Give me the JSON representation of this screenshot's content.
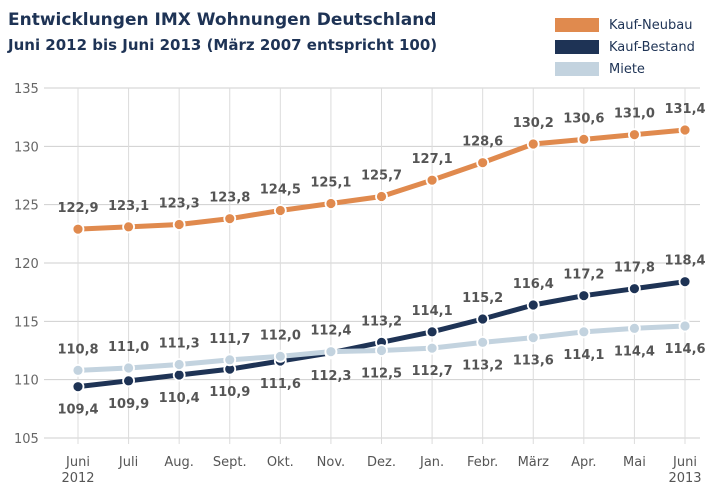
{
  "chart_data": {
    "type": "line",
    "title": "Entwicklungen IMX Wohnungen Deutschland",
    "subtitle": "Juni 2012 bis Juni 2013 (März 2007 entspricht 100)",
    "categories": [
      "Juni 2012",
      "Juli",
      "Aug.",
      "Sept.",
      "Okt.",
      "Nov.",
      "Dez.",
      "Jan.",
      "Febr.",
      "März",
      "Apr.",
      "Mai",
      "Juni 2013"
    ],
    "ylim": [
      105,
      135
    ],
    "yticks": [
      105,
      110,
      115,
      120,
      125,
      130,
      135
    ],
    "grid": true,
    "legend_position": "top-right",
    "series": [
      {
        "name": "Kauf-Neubau",
        "color": "#e08a4e",
        "values": [
          122.9,
          123.1,
          123.3,
          123.8,
          124.5,
          125.1,
          125.7,
          127.1,
          128.6,
          130.2,
          130.6,
          131.0,
          131.4
        ],
        "labels": [
          "122,9",
          "123,1",
          "123,3",
          "123,8",
          "124,5",
          "125,1",
          "125,7",
          "127,1",
          "128,6",
          "130,2",
          "130,6",
          "131,0",
          "131,4"
        ]
      },
      {
        "name": "Kauf-Bestand",
        "color": "#1e3355",
        "values": [
          109.4,
          109.9,
          110.4,
          110.9,
          111.6,
          112.3,
          113.2,
          114.1,
          115.2,
          116.4,
          117.2,
          117.8,
          118.4
        ],
        "labels": [
          "109,4",
          "109,9",
          "110,4",
          "110,9",
          "111,6",
          "112,3",
          "113,2",
          "114,1",
          "115,2",
          "116,4",
          "117,2",
          "117,8",
          "118,4"
        ]
      },
      {
        "name": "Miete",
        "color": "#c3d3df",
        "values": [
          110.8,
          111.0,
          111.3,
          111.7,
          112.0,
          112.4,
          112.5,
          112.7,
          113.2,
          113.6,
          114.1,
          114.4,
          114.6
        ],
        "labels": [
          "110,8",
          "111,0",
          "111,3",
          "111,7",
          "112,0",
          "112,4",
          "112,5",
          "112,7",
          "113,2",
          "113,6",
          "114,1",
          "114,4",
          "114,6"
        ]
      }
    ]
  }
}
